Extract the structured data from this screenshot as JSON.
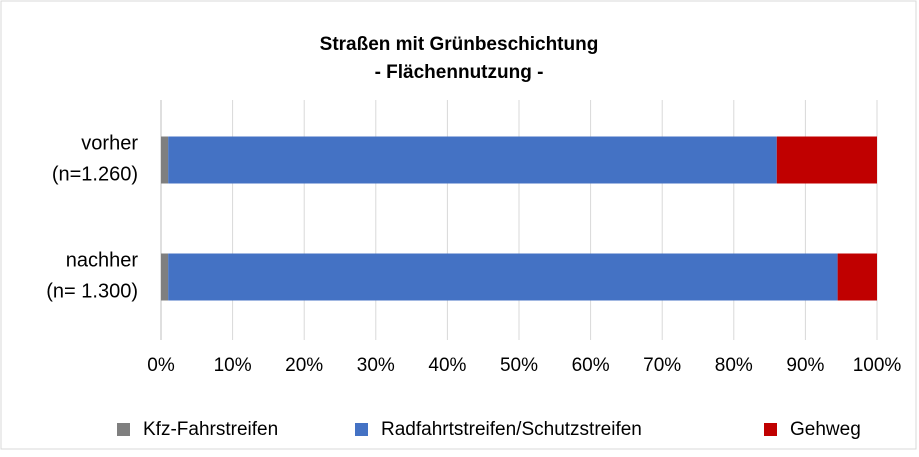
{
  "chart_data": {
    "type": "stacked-bar-horizontal",
    "title": [
      "Straßen mit Grünbeschichtung",
      "- Flächennutzung -"
    ],
    "categories": [
      [
        "vorher",
        "(n=1.260)"
      ],
      [
        "nachher",
        "(n= 1.300)"
      ]
    ],
    "series": [
      {
        "name": "Kfz-Fahrstreifen",
        "color": "#7f7f7f",
        "values": [
          1,
          1
        ]
      },
      {
        "name": "Radfahrtstreifen/Schutzstreifen",
        "color": "#4472c4",
        "values": [
          85,
          93.5
        ]
      },
      {
        "name": "Gehweg",
        "color": "#c00000",
        "values": [
          14,
          5.5
        ]
      }
    ],
    "xlim": [
      0,
      100
    ],
    "xticks": [
      {
        "value": 0,
        "label": "0%"
      },
      {
        "value": 10,
        "label": "10%"
      },
      {
        "value": 20,
        "label": "20%"
      },
      {
        "value": 30,
        "label": "30%"
      },
      {
        "value": 40,
        "label": "40%"
      },
      {
        "value": 50,
        "label": "50%"
      },
      {
        "value": 60,
        "label": "60%"
      },
      {
        "value": 70,
        "label": "70%"
      },
      {
        "value": 80,
        "label": "80%"
      },
      {
        "value": 90,
        "label": "90%"
      },
      {
        "value": 100,
        "label": "100%"
      }
    ],
    "grid": true,
    "legend": "bottom"
  }
}
